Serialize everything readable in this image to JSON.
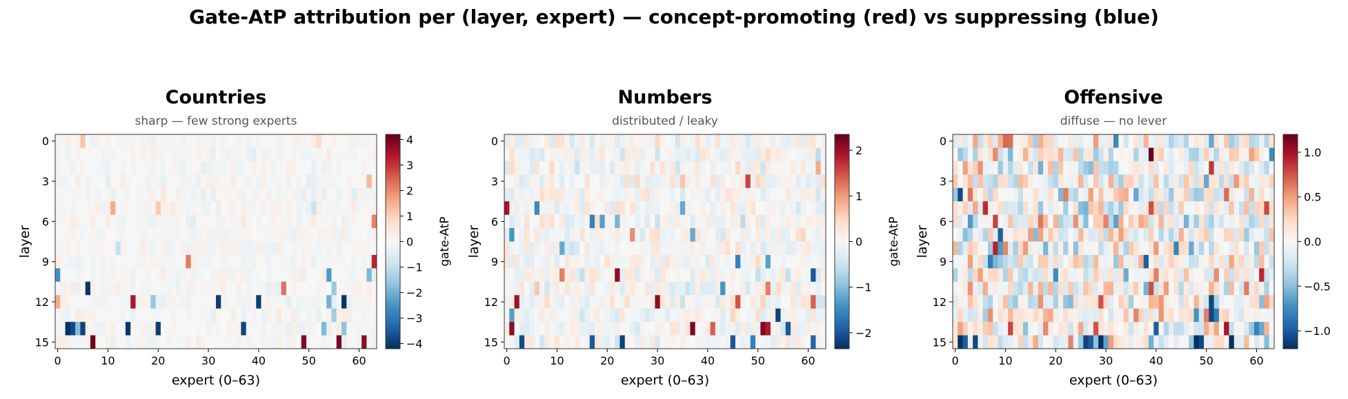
{
  "figure": {
    "title": "Gate-AtP attribution per (layer, expert) — concept-promoting (red) vs suppressing (blue)"
  },
  "chart_data": [
    {
      "type": "heatmap",
      "title": "Countries",
      "subtitle": "sharp — few strong experts",
      "xlabel": "expert (0–63)",
      "ylabel": "layer",
      "colorbar_label": "gate-AtP",
      "n_layers": 16,
      "n_experts": 64,
      "xticks": [
        0,
        10,
        20,
        30,
        40,
        50,
        60
      ],
      "yticks": [
        0,
        3,
        6,
        9,
        12,
        15
      ],
      "vlim": [
        -4.2,
        4.2
      ],
      "colorbar_ticks": [
        4,
        3,
        2,
        1,
        0,
        -1,
        -2,
        -3,
        -4
      ],
      "colorbar_tick_labels": [
        "4",
        "3",
        "2",
        "1",
        "0",
        "−1",
        "−2",
        "−3",
        "−4"
      ],
      "cmap": "RdBu_r",
      "background_spread": 0.45,
      "strong_cells": [
        {
          "layer": 0,
          "expert": 5,
          "value": 1.2
        },
        {
          "layer": 0,
          "expert": 52,
          "value": 0.8
        },
        {
          "layer": 3,
          "expert": 62,
          "value": 1.4
        },
        {
          "layer": 5,
          "expert": 11,
          "value": 1.6
        },
        {
          "layer": 5,
          "expert": 20,
          "value": 1.1
        },
        {
          "layer": 5,
          "expert": 51,
          "value": -0.9
        },
        {
          "layer": 6,
          "expert": 63,
          "value": 2.1
        },
        {
          "layer": 8,
          "expert": 12,
          "value": -1.0
        },
        {
          "layer": 9,
          "expert": 26,
          "value": 2.2
        },
        {
          "layer": 9,
          "expert": 63,
          "value": 3.2
        },
        {
          "layer": 10,
          "expert": 0,
          "value": -2.6
        },
        {
          "layer": 10,
          "expert": 54,
          "value": -2.4
        },
        {
          "layer": 10,
          "expert": 62,
          "value": -1.9
        },
        {
          "layer": 11,
          "expert": 6,
          "value": -4.1
        },
        {
          "layer": 11,
          "expert": 45,
          "value": 2.3
        },
        {
          "layer": 11,
          "expert": 55,
          "value": -1.6
        },
        {
          "layer": 12,
          "expert": 0,
          "value": 1.6
        },
        {
          "layer": 12,
          "expert": 15,
          "value": 3.4
        },
        {
          "layer": 12,
          "expert": 19,
          "value": -1.6
        },
        {
          "layer": 12,
          "expert": 32,
          "value": -4.0
        },
        {
          "layer": 12,
          "expert": 40,
          "value": -4.0
        },
        {
          "layer": 12,
          "expert": 54,
          "value": -2.0
        },
        {
          "layer": 12,
          "expert": 57,
          "value": -4.1
        },
        {
          "layer": 13,
          "expert": 55,
          "value": -1.5
        },
        {
          "layer": 14,
          "expert": 2,
          "value": -4.2
        },
        {
          "layer": 14,
          "expert": 3,
          "value": -3.8
        },
        {
          "layer": 14,
          "expert": 4,
          "value": -1.8
        },
        {
          "layer": 14,
          "expert": 5,
          "value": -3.9
        },
        {
          "layer": 14,
          "expert": 14,
          "value": -4.1
        },
        {
          "layer": 14,
          "expert": 20,
          "value": -4.0
        },
        {
          "layer": 14,
          "expert": 37,
          "value": -3.9
        },
        {
          "layer": 14,
          "expert": 53,
          "value": -1.9
        },
        {
          "layer": 14,
          "expert": 57,
          "value": -1.7
        },
        {
          "layer": 15,
          "expert": 7,
          "value": 4.1
        },
        {
          "layer": 15,
          "expert": 49,
          "value": 3.9
        },
        {
          "layer": 15,
          "expert": 56,
          "value": 4.0
        },
        {
          "layer": 15,
          "expert": 61,
          "value": 3.8
        }
      ]
    },
    {
      "type": "heatmap",
      "title": "Numbers",
      "subtitle": "distributed / leaky",
      "xlabel": "expert (0–63)",
      "ylabel": "layer",
      "colorbar_label": "gate-AtP",
      "n_layers": 16,
      "n_experts": 64,
      "xticks": [
        0,
        10,
        20,
        30,
        40,
        50,
        60
      ],
      "yticks": [
        0,
        3,
        6,
        9,
        12,
        15
      ],
      "vlim": [
        -2.35,
        2.35
      ],
      "colorbar_ticks": [
        2,
        1,
        0,
        -1,
        -2
      ],
      "colorbar_tick_labels": [
        "2",
        "1",
        "0",
        "−1",
        "−2"
      ],
      "cmap": "RdBu_r",
      "background_spread": 0.7,
      "strong_cells": [
        {
          "layer": 2,
          "expert": 62,
          "value": 0.9
        },
        {
          "layer": 3,
          "expert": 48,
          "value": 1.6
        },
        {
          "layer": 5,
          "expert": 0,
          "value": 2.0
        },
        {
          "layer": 5,
          "expert": 6,
          "value": -1.5
        },
        {
          "layer": 5,
          "expert": 35,
          "value": -1.2
        },
        {
          "layer": 6,
          "expert": 17,
          "value": -1.6
        },
        {
          "layer": 6,
          "expert": 19,
          "value": -1.3
        },
        {
          "layer": 6,
          "expert": 22,
          "value": -1.1
        },
        {
          "layer": 7,
          "expert": 1,
          "value": -1.4
        },
        {
          "layer": 7,
          "expert": 25,
          "value": 1.1
        },
        {
          "layer": 7,
          "expert": 37,
          "value": -1.2
        },
        {
          "layer": 8,
          "expert": 11,
          "value": -1.2
        },
        {
          "layer": 9,
          "expert": 46,
          "value": -1.6
        },
        {
          "layer": 9,
          "expert": 52,
          "value": -1.3
        },
        {
          "layer": 10,
          "expert": 22,
          "value": 2.1
        },
        {
          "layer": 10,
          "expert": 61,
          "value": -2.0
        },
        {
          "layer": 10,
          "expert": 11,
          "value": 1.2
        },
        {
          "layer": 11,
          "expert": 43,
          "value": -1.4
        },
        {
          "layer": 11,
          "expert": 52,
          "value": 1.2
        },
        {
          "layer": 12,
          "expert": 2,
          "value": 2.0
        },
        {
          "layer": 12,
          "expert": 30,
          "value": 2.1
        },
        {
          "layer": 12,
          "expert": 46,
          "value": 1.5
        },
        {
          "layer": 12,
          "expert": 61,
          "value": 1.4
        },
        {
          "layer": 13,
          "expert": 54,
          "value": -2.2
        },
        {
          "layer": 13,
          "expert": 1,
          "value": -1.3
        },
        {
          "layer": 14,
          "expert": 1,
          "value": 2.1
        },
        {
          "layer": 14,
          "expert": 37,
          "value": 2.2
        },
        {
          "layer": 14,
          "expert": 41,
          "value": 1.4
        },
        {
          "layer": 14,
          "expert": 51,
          "value": 2.2
        },
        {
          "layer": 14,
          "expert": 52,
          "value": 1.9
        },
        {
          "layer": 14,
          "expert": 56,
          "value": -2.0
        },
        {
          "layer": 15,
          "expert": 3,
          "value": -2.1
        },
        {
          "layer": 15,
          "expert": 17,
          "value": -2.0
        },
        {
          "layer": 15,
          "expert": 23,
          "value": -2.2
        },
        {
          "layer": 15,
          "expert": 45,
          "value": -2.0
        },
        {
          "layer": 15,
          "expert": 49,
          "value": -1.6
        },
        {
          "layer": 15,
          "expert": 61,
          "value": -1.9
        }
      ]
    },
    {
      "type": "heatmap",
      "title": "Offensive",
      "subtitle": "diffuse — no lever",
      "xlabel": "expert (0–63)",
      "ylabel": "layer",
      "colorbar_label": "gate-AtP",
      "n_layers": 16,
      "n_experts": 64,
      "xticks": [
        0,
        10,
        20,
        30,
        40,
        50,
        60
      ],
      "yticks": [
        0,
        3,
        6,
        9,
        12,
        15
      ],
      "vlim": [
        -1.2,
        1.2
      ],
      "colorbar_ticks": [
        1.0,
        0.5,
        0.0,
        -0.5,
        -1.0
      ],
      "colorbar_tick_labels": [
        "1.0",
        "0.5",
        "0.0",
        "−0.5",
        "−1.0"
      ],
      "cmap": "RdBu_r",
      "background_spread": 0.9,
      "strong_cells": [
        {
          "layer": 1,
          "expert": 39,
          "value": 1.2
        },
        {
          "layer": 4,
          "expert": 1,
          "value": -1.1
        },
        {
          "layer": 5,
          "expert": 6,
          "value": 0.9
        },
        {
          "layer": 5,
          "expert": 62,
          "value": 0.8
        },
        {
          "layer": 7,
          "expert": 9,
          "value": -1.0
        },
        {
          "layer": 9,
          "expert": 38,
          "value": -1.0
        },
        {
          "layer": 12,
          "expert": 51,
          "value": -1.1
        },
        {
          "layer": 13,
          "expert": 51,
          "value": -1.1
        },
        {
          "layer": 14,
          "expert": 40,
          "value": -1.0
        },
        {
          "layer": 14,
          "expert": 54,
          "value": 1.0
        },
        {
          "layer": 15,
          "expert": 1,
          "value": -1.2
        },
        {
          "layer": 15,
          "expert": 2,
          "value": -1.0
        },
        {
          "layer": 15,
          "expert": 4,
          "value": -1.1
        },
        {
          "layer": 15,
          "expert": 26,
          "value": -1.1
        },
        {
          "layer": 15,
          "expert": 27,
          "value": -1.0
        },
        {
          "layer": 15,
          "expert": 29,
          "value": -1.2
        },
        {
          "layer": 15,
          "expert": 48,
          "value": -1.2
        },
        {
          "layer": 15,
          "expert": 49,
          "value": -1.1
        },
        {
          "layer": 15,
          "expert": 55,
          "value": -1.2
        }
      ]
    }
  ]
}
